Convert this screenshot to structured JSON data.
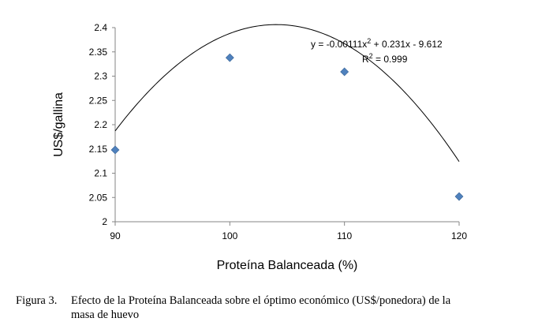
{
  "chart_data": {
    "type": "scatter",
    "title": "",
    "xlabel": "Proteína Balanceada (%)",
    "ylabel": "US$/gallina",
    "xlim": [
      90,
      120
    ],
    "ylim": [
      2,
      2.4
    ],
    "x_ticks": [
      "90",
      "100",
      "110",
      "120"
    ],
    "y_ticks": [
      "2",
      "2.05",
      "2.1",
      "2.15",
      "2.2",
      "2.25",
      "2.3",
      "2.35",
      "2.4"
    ],
    "grid": false,
    "series": [
      {
        "x": [
          90,
          100,
          110,
          120
        ],
        "y": [
          2.148,
          2.338,
          2.309,
          2.052
        ],
        "marker": "diamond",
        "color": "#4f81bd"
      }
    ],
    "trendline": {
      "type": "polynomial",
      "coefficients": [
        -0.00111,
        0.231,
        -9.612
      ],
      "color": "#000000"
    },
    "annotations": {
      "equation_pre": "y = -0.00111x",
      "equation_post": " + 0.231x - 9.612",
      "r2_pre": "R",
      "r2_post": " = 0.999",
      "superscript": "2"
    }
  },
  "caption": {
    "label": "Figura 3.",
    "line1": "Efecto de la Proteína Balanceada sobre el óptimo económico (US$/ponedora) de la",
    "line2": "masa de huevo"
  }
}
